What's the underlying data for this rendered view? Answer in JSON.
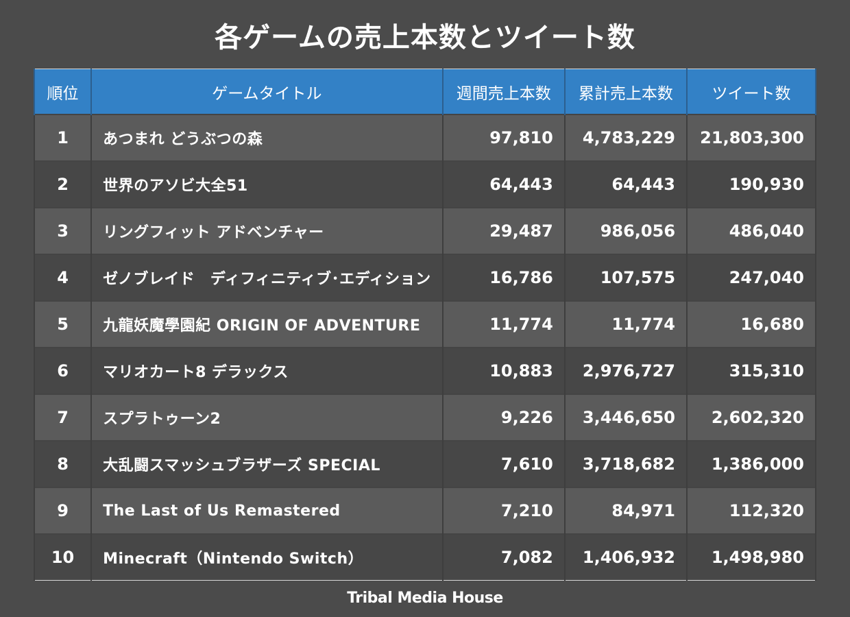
{
  "title": "各ゲームの売上本数とツイート数",
  "footer": "Tribal Media House",
  "colors": {
    "background": "#4b4b4b",
    "header": "#3381c6",
    "row_light": "#5b5b5b",
    "row_dark": "#474747"
  },
  "chart_data": {
    "type": "table",
    "title": "各ゲームの売上本数とツイート数",
    "columns": [
      "順位",
      "ゲームタイトル",
      "週間売上本数",
      "累計売上本数",
      "ツイート数"
    ],
    "rows": [
      [
        "1",
        "あつまれ どうぶつの森",
        "97,810",
        "4,783,229",
        "21,803,300"
      ],
      [
        "2",
        "世界のアソビ大全51",
        "64,443",
        "64,443",
        "190,930"
      ],
      [
        "3",
        "リングフィット アドベンチャー",
        "29,487",
        "986,056",
        "486,040"
      ],
      [
        "4",
        "ゼノブレイド　ディフィニティブ･エディション",
        "16,786",
        "107,575",
        "247,040"
      ],
      [
        "5",
        "九龍妖魔學園紀 ORIGIN OF ADVENTURE",
        "11,774",
        "11,774",
        "16,680"
      ],
      [
        "6",
        "マリオカート8 デラックス",
        "10,883",
        "2,976,727",
        "315,310"
      ],
      [
        "7",
        "スプラトゥーン2",
        "9,226",
        "3,446,650",
        "2,602,320"
      ],
      [
        "8",
        "大乱闘スマッシュブラザーズ SPECIAL",
        "7,610",
        "3,718,682",
        "1,386,000"
      ],
      [
        "9",
        "The Last of Us Remastered",
        "7,210",
        "84,971",
        "112,320"
      ],
      [
        "10",
        "Minecraft（Nintendo Switch）",
        "7,082",
        "1,406,932",
        "1,498,980"
      ]
    ]
  }
}
